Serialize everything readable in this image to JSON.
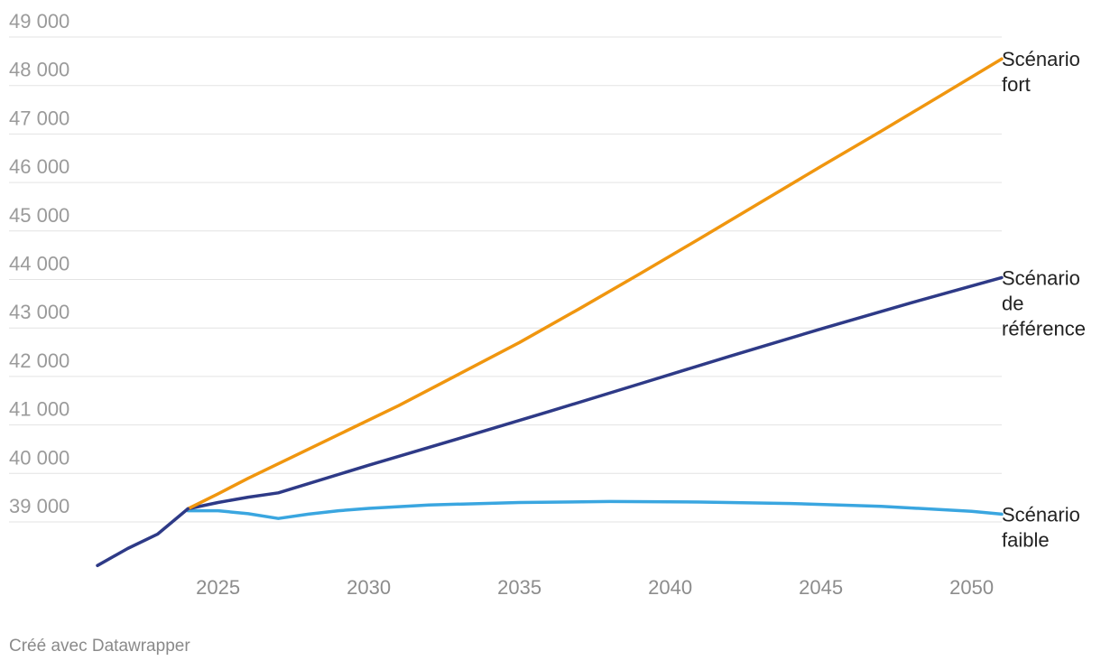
{
  "chart_data": {
    "type": "line",
    "title": "",
    "xlabel": "",
    "ylabel": "",
    "xlim": [
      2021,
      2051
    ],
    "ylim": [
      38000,
      49300
    ],
    "x_ticks": [
      2025,
      2030,
      2035,
      2040,
      2045,
      2050
    ],
    "x_tick_labels": [
      "2025",
      "2030",
      "2035",
      "2040",
      "2045",
      "2050"
    ],
    "y_ticks": [
      39000,
      40000,
      41000,
      42000,
      43000,
      44000,
      45000,
      46000,
      47000,
      48000,
      49000
    ],
    "y_tick_labels": [
      "39 000",
      "40 000",
      "41 000",
      "42 000",
      "43 000",
      "44 000",
      "45 000",
      "46 000",
      "47 000",
      "48 000",
      "49 000"
    ],
    "grid": true,
    "legend": "end-of-line labels",
    "historical": {
      "x": [
        2021,
        2022,
        2023,
        2024
      ],
      "y": [
        38100,
        38450,
        38750,
        39270
      ],
      "color": "#2e3a87"
    },
    "series": [
      {
        "name": "Scénario fort",
        "label_lines": [
          "Scénario",
          "fort"
        ],
        "color": "#f0960f",
        "x": [
          2024,
          2025,
          2026,
          2027,
          2029,
          2031,
          2033,
          2035,
          2037,
          2039,
          2041,
          2043,
          2045,
          2047,
          2049,
          2051
        ],
        "y": [
          39270,
          39580,
          39900,
          40200,
          40800,
          41400,
          42050,
          42700,
          43400,
          44120,
          44850,
          45590,
          46330,
          47060,
          47800,
          48550
        ]
      },
      {
        "name": "Scénario de référence",
        "label_lines": [
          "Scénario",
          "de",
          "référence"
        ],
        "color": "#2e3a87",
        "x": [
          2024,
          2025,
          2026,
          2027,
          2030,
          2033,
          2036,
          2039,
          2042,
          2045,
          2048,
          2051
        ],
        "y": [
          39270,
          39400,
          39510,
          39600,
          40170,
          40720,
          41280,
          41850,
          42420,
          42980,
          43520,
          44040
        ]
      },
      {
        "name": "Scénario faible",
        "label_lines": [
          "Scénario",
          "faible"
        ],
        "color": "#3aa6e0",
        "x": [
          2024,
          2025,
          2026,
          2027,
          2028,
          2029,
          2030,
          2032,
          2035,
          2038,
          2041,
          2044,
          2047,
          2050,
          2051
        ],
        "y": [
          39230,
          39230,
          39170,
          39070,
          39160,
          39230,
          39280,
          39350,
          39400,
          39420,
          39410,
          39380,
          39320,
          39220,
          39160
        ]
      }
    ]
  },
  "footer": {
    "credit": "Créé avec Datawrapper"
  }
}
